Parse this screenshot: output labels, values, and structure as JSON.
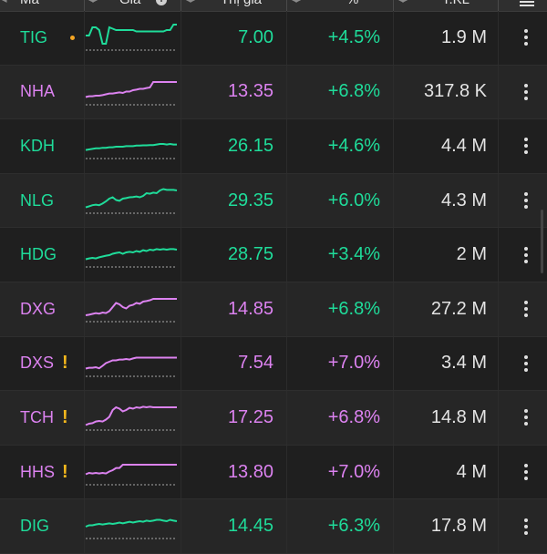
{
  "header": {
    "col_symbol": "Mã",
    "col_chart": "Giá",
    "col_price": "Thị giá",
    "col_pct": "%",
    "col_volume": "T.KL",
    "info_icon": "info-icon",
    "menu_icon": "hamburger-icon"
  },
  "colors": {
    "purple": "#dc82f0",
    "green": "#1fdc9a",
    "warning": "#f5b81d"
  },
  "rows": [
    {
      "symbol": "TIG",
      "flag": "dot",
      "color": "green",
      "price": "7.00",
      "price_color": "green",
      "pct": "+4.5%",
      "pct_color": "green",
      "volume": "1.9 M",
      "spark": [
        0.5,
        0.5,
        0.2,
        0.2,
        0.3,
        0.8,
        0.8,
        0.2,
        0.25,
        0.3,
        0.3,
        0.3,
        0.3,
        0.3,
        0.3,
        0.35,
        0.35,
        0.35,
        0.35,
        0.35,
        0.35,
        0.35,
        0.35,
        0.35,
        0.3,
        0.3,
        0.1,
        0.1
      ]
    },
    {
      "symbol": "NHA",
      "flag": "",
      "color": "purple",
      "price": "13.35",
      "price_color": "purple",
      "pct": "+6.8%",
      "pct_color": "green",
      "volume": "317.8 K",
      "spark": [
        0.75,
        0.72,
        0.72,
        0.7,
        0.7,
        0.68,
        0.65,
        0.62,
        0.62,
        0.6,
        0.58,
        0.6,
        0.55,
        0.55,
        0.5,
        0.48,
        0.45,
        0.45,
        0.42,
        0.4,
        0.2,
        0.2,
        0.2,
        0.2,
        0.2,
        0.2,
        0.2,
        0.2
      ]
    },
    {
      "symbol": "KDH",
      "flag": "",
      "color": "green",
      "price": "26.15",
      "price_color": "green",
      "pct": "+4.6%",
      "pct_color": "green",
      "volume": "4.4 M",
      "spark": [
        0.72,
        0.7,
        0.68,
        0.66,
        0.66,
        0.64,
        0.64,
        0.62,
        0.62,
        0.6,
        0.6,
        0.6,
        0.58,
        0.58,
        0.58,
        0.56,
        0.56,
        0.55,
        0.55,
        0.54,
        0.54,
        0.52,
        0.5,
        0.5,
        0.52,
        0.5,
        0.52,
        0.52
      ]
    },
    {
      "symbol": "NLG",
      "flag": "",
      "color": "green",
      "price": "29.35",
      "price_color": "green",
      "pct": "+6.0%",
      "pct_color": "green",
      "volume": "4.3 M",
      "spark": [
        0.82,
        0.78,
        0.74,
        0.72,
        0.74,
        0.68,
        0.6,
        0.5,
        0.45,
        0.55,
        0.58,
        0.5,
        0.48,
        0.45,
        0.44,
        0.42,
        0.45,
        0.4,
        0.3,
        0.32,
        0.28,
        0.3,
        0.2,
        0.15,
        0.18,
        0.18,
        0.18,
        0.2
      ]
    },
    {
      "symbol": "HDG",
      "flag": "",
      "color": "green",
      "price": "28.75",
      "price_color": "green",
      "pct": "+3.4%",
      "pct_color": "green",
      "volume": "2 M",
      "spark": [
        0.75,
        0.72,
        0.7,
        0.72,
        0.68,
        0.65,
        0.62,
        0.6,
        0.55,
        0.52,
        0.5,
        0.55,
        0.5,
        0.48,
        0.5,
        0.45,
        0.48,
        0.42,
        0.45,
        0.4,
        0.42,
        0.38,
        0.4,
        0.38,
        0.4,
        0.38,
        0.38,
        0.4
      ]
    },
    {
      "symbol": "DXG",
      "flag": "",
      "color": "purple",
      "price": "14.85",
      "price_color": "purple",
      "pct": "+6.8%",
      "pct_color": "green",
      "volume": "27.2 M",
      "spark": [
        0.8,
        0.78,
        0.75,
        0.72,
        0.74,
        0.7,
        0.72,
        0.65,
        0.5,
        0.35,
        0.4,
        0.5,
        0.55,
        0.45,
        0.42,
        0.35,
        0.38,
        0.3,
        0.28,
        0.25,
        0.2,
        0.2,
        0.2,
        0.2,
        0.2,
        0.2,
        0.2,
        0.2
      ]
    },
    {
      "symbol": "DXS",
      "flag": "warn",
      "color": "purple",
      "price": "7.54",
      "price_color": "purple",
      "pct": "+7.0%",
      "pct_color": "purple",
      "volume": "3.4 M",
      "spark": [
        0.75,
        0.72,
        0.72,
        0.7,
        0.74,
        0.65,
        0.55,
        0.5,
        0.45,
        0.45,
        0.42,
        0.42,
        0.4,
        0.42,
        0.38,
        0.35,
        0.35,
        0.35,
        0.35,
        0.35,
        0.35,
        0.35,
        0.35,
        0.35,
        0.35,
        0.35,
        0.35,
        0.35
      ]
    },
    {
      "symbol": "TCH",
      "flag": "warn",
      "color": "purple",
      "price": "17.25",
      "price_color": "purple",
      "pct": "+6.8%",
      "pct_color": "purple",
      "volume": "14.8 M",
      "spark": [
        0.85,
        0.8,
        0.78,
        0.72,
        0.7,
        0.72,
        0.65,
        0.55,
        0.3,
        0.2,
        0.25,
        0.35,
        0.3,
        0.22,
        0.25,
        0.2,
        0.22,
        0.18,
        0.2,
        0.18,
        0.2,
        0.2,
        0.2,
        0.2,
        0.2,
        0.2,
        0.2,
        0.2
      ]
    },
    {
      "symbol": "HHS",
      "flag": "warn",
      "color": "purple",
      "price": "13.80",
      "price_color": "purple",
      "pct": "+7.0%",
      "pct_color": "purple",
      "volume": "4 M",
      "spark": [
        0.65,
        0.6,
        0.62,
        0.6,
        0.62,
        0.6,
        0.62,
        0.55,
        0.5,
        0.42,
        0.42,
        0.3,
        0.3,
        0.3,
        0.3,
        0.3,
        0.3,
        0.3,
        0.3,
        0.3,
        0.3,
        0.3,
        0.3,
        0.3,
        0.3,
        0.3,
        0.3,
        0.3
      ]
    },
    {
      "symbol": "DIG",
      "flag": "",
      "color": "green",
      "price": "14.45",
      "price_color": "green",
      "pct": "+6.3%",
      "pct_color": "green",
      "volume": "17.8 M",
      "spark": [
        0.6,
        0.55,
        0.55,
        0.52,
        0.5,
        0.52,
        0.5,
        0.48,
        0.5,
        0.48,
        0.45,
        0.48,
        0.45,
        0.42,
        0.45,
        0.42,
        0.4,
        0.42,
        0.38,
        0.4,
        0.38,
        0.35,
        0.35,
        0.38,
        0.4,
        0.35,
        0.38,
        0.4
      ]
    }
  ]
}
